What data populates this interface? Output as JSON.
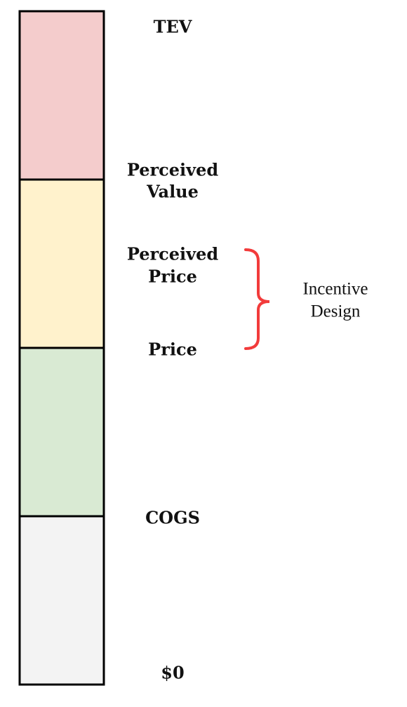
{
  "levels": [
    {
      "lines": [
        "TEV"
      ]
    },
    {
      "lines": [
        "Perceived",
        "Value"
      ]
    },
    {
      "lines": [
        "Perceived",
        "Price"
      ]
    },
    {
      "lines": [
        "Price"
      ]
    },
    {
      "lines": [
        "COGS"
      ]
    },
    {
      "lines": [
        "$0"
      ]
    }
  ],
  "bracket": {
    "lines": [
      "Incentive",
      "Design"
    ]
  }
}
